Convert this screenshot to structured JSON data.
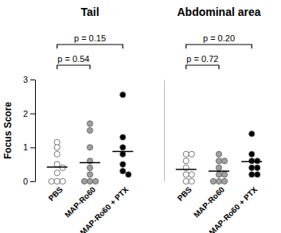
{
  "chart_data": [
    {
      "type": "scatter",
      "title": "Tail",
      "y_label": "Focus Score",
      "categories": [
        "PBS",
        "MAP-Ro60",
        "MAP-Ro60 + PTX"
      ],
      "colors": [
        "#ffffff",
        "#a0a0a0",
        "#000000"
      ],
      "points": [
        [
          1.15,
          1.0,
          0.8,
          0.5,
          0.4,
          0.25,
          0,
          0,
          0
        ],
        [
          1.7,
          1.5,
          1.0,
          0.6,
          0.4,
          0.2,
          0,
          0,
          0
        ],
        [
          2.55,
          1.3,
          1.0,
          0.8,
          0.5,
          0.3,
          0.2
        ]
      ],
      "means": [
        0.42,
        0.55,
        0.88
      ],
      "comparisons": [
        {
          "groups": [
            0,
            1
          ],
          "label": "p = 0.54"
        },
        {
          "groups": [
            0,
            2
          ],
          "label": "p = 0.15"
        }
      ],
      "ylim": [
        0,
        3
      ],
      "yticks": [
        0,
        1,
        2,
        3
      ]
    },
    {
      "type": "scatter",
      "title": "Abdominal area",
      "categories": [
        "PBS",
        "MAP-Ro60",
        "MAP-Ro60 + PTX"
      ],
      "colors": [
        "#ffffff",
        "#a0a0a0",
        "#000000"
      ],
      "points": [
        [
          0.8,
          0.8,
          0.6,
          0.4,
          0.2,
          0.2,
          0,
          0
        ],
        [
          0.8,
          0.6,
          0.6,
          0.4,
          0.2,
          0.2,
          0,
          0,
          0
        ],
        [
          1.4,
          0.8,
          0.6,
          0.6,
          0.4,
          0.4,
          0.2,
          0.2
        ]
      ],
      "means": [
        0.35,
        0.3,
        0.58
      ],
      "comparisons": [
        {
          "groups": [
            0,
            1
          ],
          "label": "p = 0.72"
        },
        {
          "groups": [
            0,
            2
          ],
          "label": "p = 0.20"
        }
      ],
      "ylim": [
        0,
        3
      ],
      "tick_labels": false
    }
  ]
}
